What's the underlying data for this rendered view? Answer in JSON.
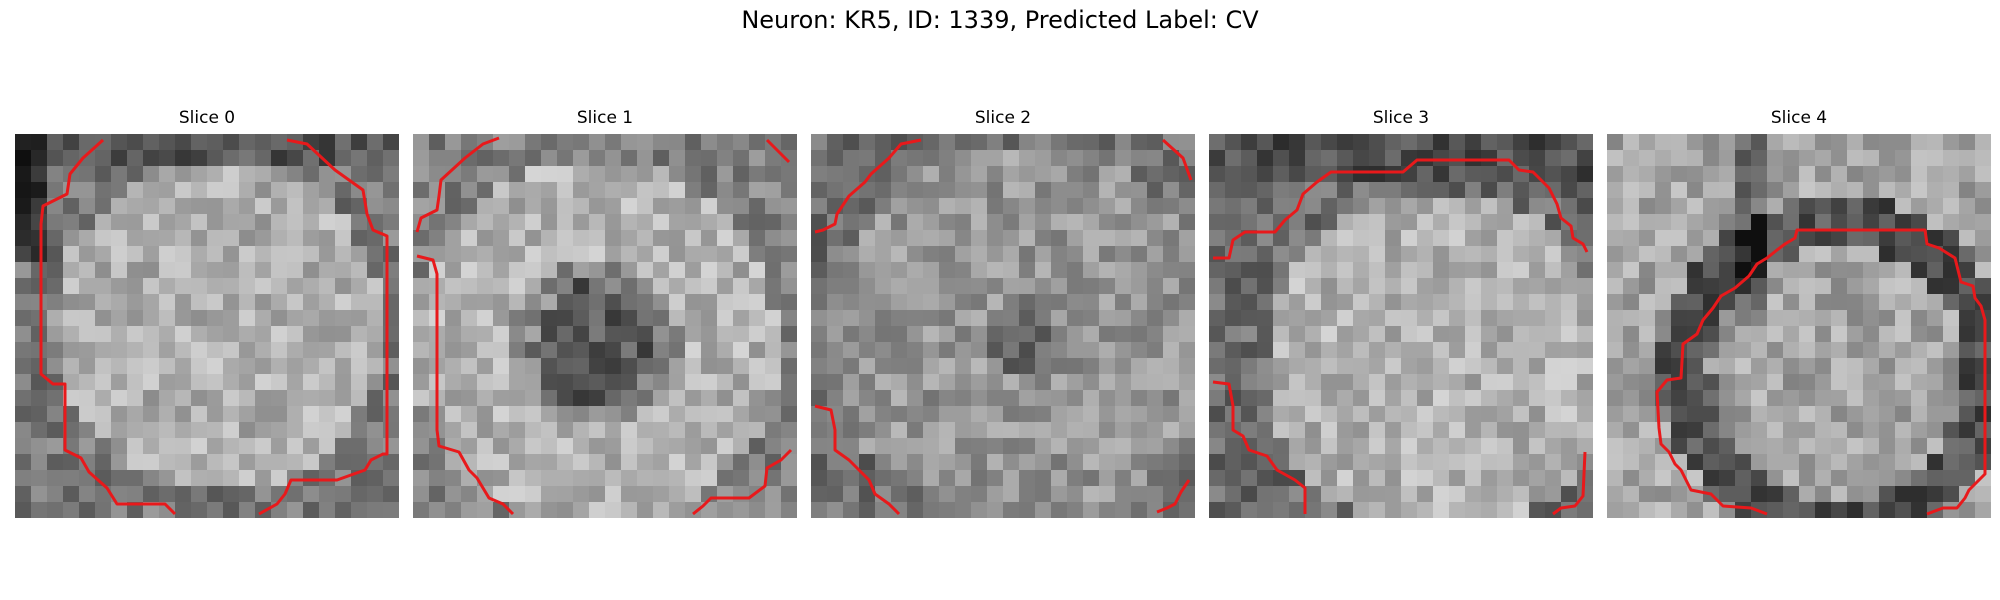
{
  "figure": {
    "title": "Neuron: KR5, ID: 1339, Predicted Label: CV"
  },
  "colors": {
    "contour": "#e8191b",
    "background": "#ffffff"
  },
  "panels": [
    {
      "title": "Slice 0"
    },
    {
      "title": "Slice 1"
    },
    {
      "title": "Slice 2"
    },
    {
      "title": "Slice 3"
    },
    {
      "title": "Slice 4"
    }
  ]
}
